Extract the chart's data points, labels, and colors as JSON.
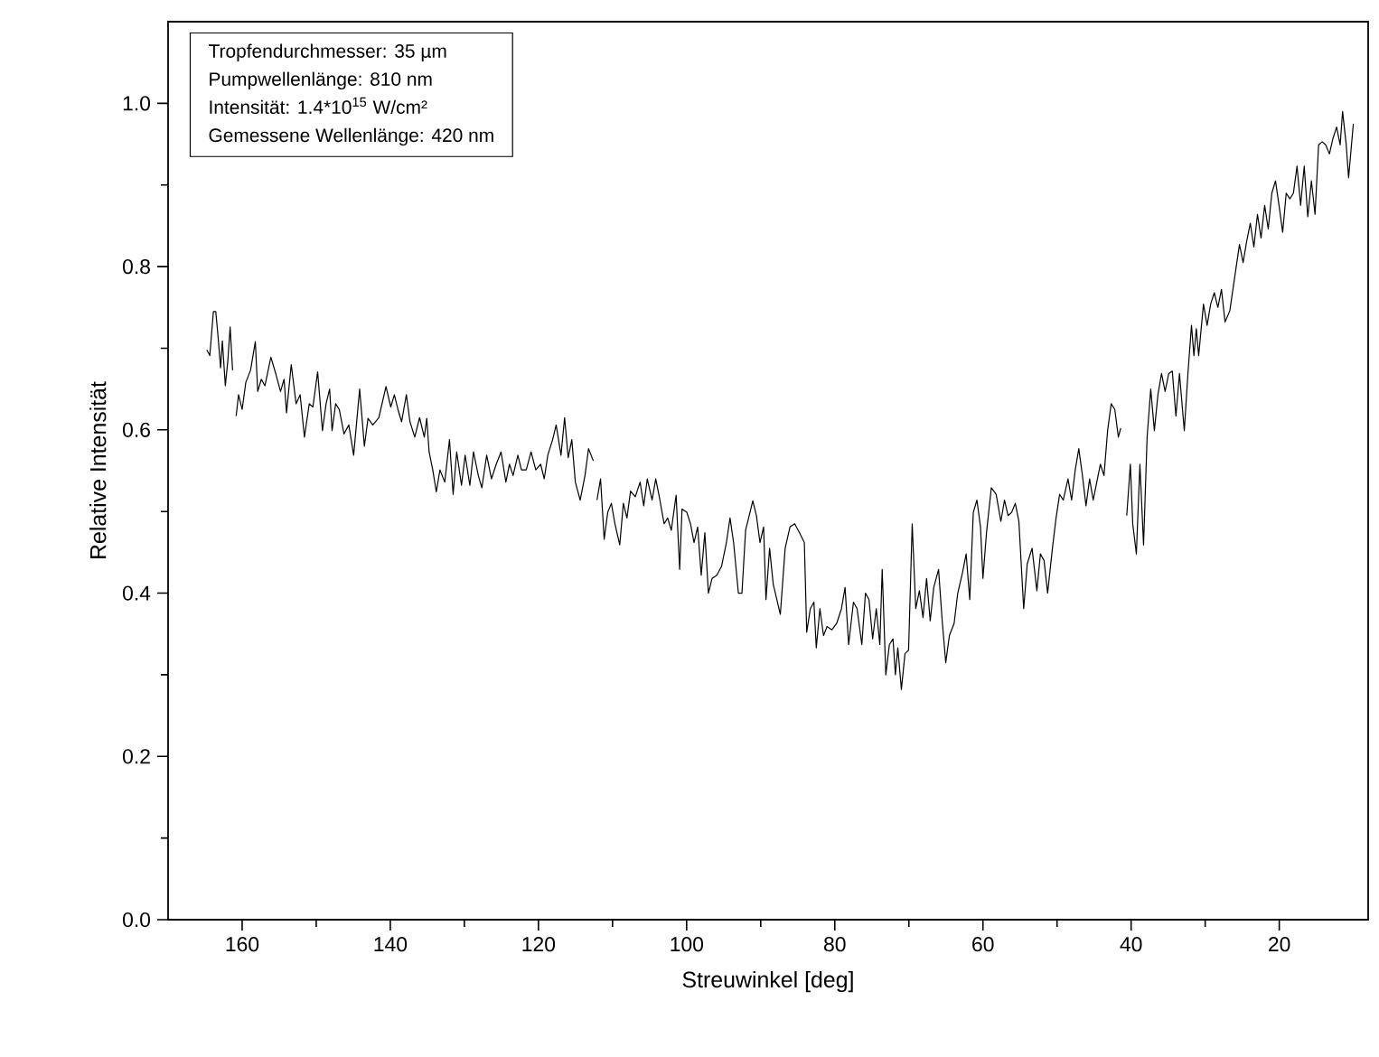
{
  "chart_data": {
    "type": "line",
    "xlabel": "Streuwinkel [deg]",
    "ylabel": "Relative Intensität",
    "annotations": [
      "Tropfendurchmesser: 35 µm",
      "Pumpwellenlänge: 810 nm",
      "Intensität: 1.4*10$^{15}$ W/cm²",
      "Gemessene Wellenlänge: 420 nm"
    ],
    "xlim": [
      170,
      8
    ],
    "xticks": [
      160,
      140,
      120,
      100,
      80,
      60,
      40,
      20
    ],
    "ylim": [
      0,
      1.1
    ],
    "yticks": [
      {
        "value": 0,
        "label": "0.0"
      },
      {
        "value": 0.2,
        "label": "0.2"
      },
      {
        "value": 0.4,
        "label": "0.4"
      },
      {
        "value": 0.6,
        "label": "0.6"
      },
      {
        "value": 0.8,
        "label": "0.8"
      },
      {
        "value": 1.0,
        "label": "1.0"
      }
    ],
    "series": [
      {
        "color": "#000000",
        "x": [
          164.77,
          164.37,
          163.88,
          163.56,
          163.24,
          162.91,
          162.67,
          162.27,
          161.94,
          161.62,
          161.29,
          161.05,
          160.81,
          160.49,
          160.0,
          159.51,
          158.87,
          158.22,
          157.9,
          157.41,
          156.93,
          156.12,
          155.47,
          154.82,
          154.34,
          154.01,
          153.37,
          152.72,
          152.17,
          151.59,
          150.94,
          150.45,
          149.81,
          149.16,
          148.67,
          148.19,
          147.86,
          147.38,
          146.89,
          146.25,
          145.6,
          144.95,
          144.14,
          143.5,
          143.01,
          142.36,
          141.55,
          140.58,
          139.94,
          139.45,
          138.97,
          138.48,
          137.83,
          137.35,
          136.7,
          136.05,
          135.41,
          135.08,
          134.76,
          134.27,
          133.79,
          133.3,
          132.65,
          132.01,
          131.52,
          131.04,
          130.39,
          129.9,
          129.26,
          128.77,
          128.12,
          127.64,
          126.99,
          126.34,
          125.7,
          125.05,
          124.4,
          123.92,
          123.43,
          122.78,
          122.3,
          121.65,
          121.0,
          120.36,
          119.71,
          119.22,
          118.74,
          118.09,
          117.61,
          116.96,
          116.47,
          115.99,
          115.5,
          115.02,
          114.37,
          113.72,
          113.24,
          112.59,
          112.35,
          112.1,
          111.62,
          111.13,
          110.65,
          110.16,
          109.68,
          109.03,
          108.54,
          108.06,
          107.57,
          106.93,
          106.28,
          105.79,
          105.31,
          104.66,
          104.17,
          103.69,
          103.04,
          102.56,
          102.07,
          101.42,
          100.94,
          100.62,
          99.97,
          99.48,
          99.0,
          98.51,
          98.03,
          97.54,
          97.06,
          96.57,
          95.92,
          95.28,
          94.63,
          94.14,
          93.66,
          93.01,
          92.53,
          92.04,
          91.55,
          91.07,
          90.58,
          90.1,
          89.61,
          89.29,
          88.8,
          88.31,
          87.35,
          86.7,
          86.05,
          85.41,
          84.76,
          84.11,
          83.79,
          83.3,
          82.82,
          82.5,
          82.01,
          81.52,
          81.04,
          80.39,
          79.74,
          79.1,
          78.61,
          78.13,
          77.48,
          76.99,
          76.35,
          75.86,
          75.38,
          74.89,
          74.4,
          73.92,
          73.6,
          73.11,
          72.63,
          72.14,
          71.82,
          71.49,
          71.01,
          70.52,
          70.04,
          69.55,
          69.07,
          68.58,
          68.09,
          67.61,
          67.12,
          66.64,
          65.99,
          65.5,
          65.02,
          64.53,
          63.89,
          63.4,
          62.76,
          62.27,
          61.78,
          61.3,
          60.81,
          60.33,
          60.0,
          59.52,
          58.87,
          58.22,
          57.58,
          57.09,
          56.61,
          56.12,
          55.63,
          55.15,
          54.5,
          54.02,
          53.37,
          52.72,
          52.24,
          51.75,
          51.27,
          50.62,
          50.13,
          49.65,
          49.16,
          48.52,
          48.03,
          47.54,
          47.06,
          46.57,
          46.09,
          45.6,
          45.12,
          44.63,
          44.15,
          43.66,
          43.17,
          42.69,
          42.2,
          41.72,
          41.4,
          41.0,
          40.59,
          40.1,
          39.78,
          39.29,
          38.81,
          38.32,
          37.84,
          37.35,
          36.86,
          36.38,
          35.89,
          35.41,
          34.92,
          34.44,
          33.95,
          33.47,
          32.82,
          32.33,
          31.85,
          31.52,
          31.2,
          30.88,
          30.23,
          29.74,
          29.26,
          28.77,
          28.29,
          27.8,
          27.32,
          26.67,
          26.02,
          25.37,
          24.88,
          24.4,
          23.91,
          23.43,
          22.94,
          22.46,
          21.97,
          21.49,
          21.0,
          20.51,
          20.03,
          19.54,
          19.06,
          18.57,
          18.09,
          17.6,
          17.12,
          16.63,
          16.15,
          15.66,
          15.17,
          14.69,
          14.2,
          13.72,
          13.23,
          12.75,
          12.26,
          11.78,
          11.45,
          10.96,
          10.64,
          10.0
        ],
        "values": [
          0.698,
          0.691,
          0.745,
          0.745,
          0.713,
          0.676,
          0.709,
          0.654,
          0.684,
          0.726,
          0.673,
          null,
          0.617,
          0.643,
          0.625,
          0.658,
          0.673,
          0.708,
          0.647,
          0.662,
          0.654,
          0.689,
          0.669,
          0.647,
          0.662,
          0.621,
          0.68,
          0.632,
          0.643,
          0.591,
          0.632,
          0.628,
          0.671,
          0.599,
          0.632,
          0.65,
          0.599,
          0.632,
          0.625,
          0.595,
          0.606,
          0.569,
          0.65,
          0.58,
          0.614,
          0.606,
          0.615,
          0.653,
          0.628,
          0.643,
          0.625,
          0.61,
          0.643,
          0.61,
          0.591,
          0.615,
          0.591,
          0.614,
          0.573,
          0.551,
          0.524,
          0.551,
          0.536,
          0.588,
          0.521,
          0.573,
          0.532,
          0.569,
          0.532,
          0.573,
          0.544,
          0.529,
          0.569,
          0.54,
          0.558,
          0.573,
          0.536,
          0.558,
          0.544,
          0.569,
          0.551,
          0.551,
          0.573,
          0.551,
          0.558,
          0.54,
          0.569,
          0.588,
          0.606,
          0.569,
          0.615,
          0.566,
          0.588,
          0.536,
          0.514,
          0.544,
          0.577,
          0.562,
          null,
          0.514,
          0.54,
          0.466,
          0.499,
          0.51,
          0.485,
          0.459,
          0.51,
          0.492,
          0.525,
          0.518,
          0.536,
          0.507,
          0.54,
          0.514,
          0.54,
          0.518,
          0.485,
          0.492,
          0.477,
          0.52,
          0.429,
          0.503,
          0.499,
          0.485,
          0.462,
          0.481,
          0.422,
          0.474,
          0.4,
          0.418,
          0.422,
          0.433,
          0.462,
          0.492,
          0.462,
          0.4,
          0.4,
          0.477,
          0.495,
          0.513,
          0.495,
          0.462,
          0.481,
          0.392,
          0.455,
          0.411,
          0.374,
          0.455,
          0.481,
          0.485,
          0.474,
          0.462,
          0.352,
          0.381,
          0.389,
          0.333,
          0.381,
          0.348,
          0.359,
          0.355,
          0.363,
          0.381,
          0.407,
          0.337,
          0.389,
          0.381,
          0.337,
          0.4,
          0.392,
          0.344,
          0.381,
          0.337,
          0.429,
          0.3,
          0.337,
          0.344,
          0.3,
          0.333,
          0.282,
          0.326,
          0.33,
          0.485,
          0.381,
          0.403,
          0.37,
          0.418,
          0.366,
          0.407,
          0.429,
          0.366,
          0.315,
          0.348,
          0.363,
          0.4,
          0.425,
          0.448,
          0.392,
          0.499,
          0.514,
          0.481,
          0.418,
          0.474,
          0.529,
          0.521,
          0.488,
          0.514,
          0.495,
          0.499,
          0.51,
          0.488,
          0.381,
          0.436,
          0.455,
          0.403,
          0.448,
          0.44,
          0.4,
          0.455,
          0.492,
          0.521,
          0.514,
          0.54,
          0.514,
          0.551,
          0.577,
          0.544,
          0.507,
          0.54,
          0.514,
          0.536,
          0.558,
          0.544,
          0.599,
          0.632,
          0.625,
          0.591,
          0.602,
          null,
          0.495,
          0.558,
          0.485,
          0.448,
          0.558,
          0.459,
          0.591,
          0.65,
          0.599,
          0.643,
          0.669,
          0.647,
          0.669,
          0.672,
          0.617,
          0.669,
          0.599,
          0.669,
          0.728,
          0.691,
          0.724,
          0.691,
          0.754,
          0.728,
          0.754,
          0.768,
          0.75,
          0.772,
          0.732,
          0.746,
          0.787,
          0.827,
          0.805,
          0.831,
          0.853,
          0.824,
          0.864,
          0.835,
          0.875,
          0.846,
          0.89,
          0.905,
          0.875,
          0.842,
          0.89,
          0.883,
          0.89,
          0.923,
          0.875,
          0.923,
          0.861,
          0.905,
          0.864,
          0.949,
          0.953,
          0.949,
          0.938,
          0.957,
          0.971,
          0.949,
          0.99,
          0.949,
          0.909,
          0.975
        ]
      }
    ]
  }
}
